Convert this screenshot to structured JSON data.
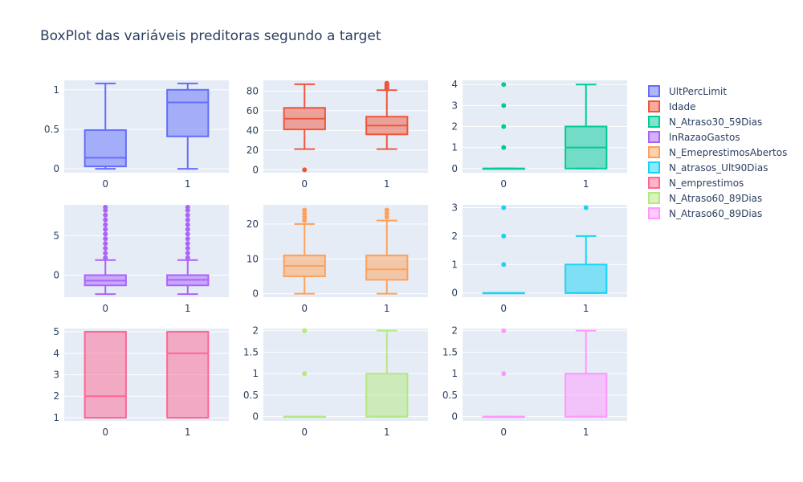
{
  "title": "BoxPlot das variáveis preditoras segundo a target",
  "legend_position": "right",
  "chart_data": [
    {
      "type": "box",
      "name": "UltPercLimit",
      "color": "#636efa",
      "categories": [
        "0",
        "1"
      ],
      "ylim": [
        -0.05,
        1.12
      ],
      "yticks": [
        0,
        0.5,
        1
      ],
      "ytick_labels": [
        "0",
        "0.5",
        "1"
      ],
      "grid": true,
      "boxes": [
        {
          "category": "0",
          "q1": 0.03,
          "median": 0.14,
          "q3": 0.49,
          "lower_fence": 0.0,
          "upper_fence": 1.08,
          "outliers": []
        },
        {
          "category": "1",
          "q1": 0.41,
          "median": 0.84,
          "q3": 1.0,
          "lower_fence": 0.0,
          "upper_fence": 1.08,
          "outliers": []
        }
      ]
    },
    {
      "type": "box",
      "name": "Idade",
      "color": "#ef553b",
      "categories": [
        "0",
        "1"
      ],
      "ylim": [
        -3,
        91
      ],
      "yticks": [
        0,
        20,
        40,
        60,
        80
      ],
      "ytick_labels": [
        "0",
        "20",
        "40",
        "60",
        "80"
      ],
      "grid": true,
      "boxes": [
        {
          "category": "0",
          "q1": 41,
          "median": 52,
          "q3": 63,
          "lower_fence": 21,
          "upper_fence": 87,
          "outliers": [
            0
          ]
        },
        {
          "category": "1",
          "q1": 36,
          "median": 45,
          "q3": 54,
          "lower_fence": 21,
          "upper_fence": 81,
          "outliers": [
            82,
            83,
            84,
            85,
            86,
            87,
            88
          ]
        }
      ]
    },
    {
      "type": "box",
      "name": "N_Atraso30_59Dias",
      "color": "#00cc96",
      "categories": [
        "0",
        "1"
      ],
      "ylim": [
        -0.2,
        4.2
      ],
      "yticks": [
        0,
        1,
        2,
        3,
        4
      ],
      "ytick_labels": [
        "0",
        "1",
        "2",
        "3",
        "4"
      ],
      "grid": true,
      "boxes": [
        {
          "category": "0",
          "q1": 0,
          "median": 0,
          "q3": 0,
          "lower_fence": 0,
          "upper_fence": 0,
          "outliers": [
            1,
            2,
            3,
            4
          ]
        },
        {
          "category": "1",
          "q1": 0,
          "median": 1,
          "q3": 2,
          "lower_fence": 0,
          "upper_fence": 4,
          "outliers": []
        }
      ]
    },
    {
      "type": "box",
      "name": "lnRazaoGastos",
      "color": "#ab63fa",
      "categories": [
        "0",
        "1"
      ],
      "ylim": [
        -2.8,
        8.9
      ],
      "yticks": [
        0,
        5
      ],
      "ytick_labels": [
        "0",
        "5"
      ],
      "grid": true,
      "boxes": [
        {
          "category": "0",
          "q1": -1.3,
          "median": -0.7,
          "q3": 0.0,
          "lower_fence": -2.4,
          "upper_fence": 1.9,
          "outliers": [
            2.2,
            2.8,
            3.4,
            4.0,
            4.6,
            5.2,
            5.8,
            6.4,
            7.0,
            7.6,
            8.2,
            8.6
          ]
        },
        {
          "category": "1",
          "q1": -1.3,
          "median": -0.6,
          "q3": 0.0,
          "lower_fence": -2.4,
          "upper_fence": 1.9,
          "outliers": [
            2.2,
            2.8,
            3.4,
            4.0,
            4.6,
            5.2,
            5.8,
            6.4,
            7.0,
            7.6,
            8.2,
            8.6
          ]
        }
      ]
    },
    {
      "type": "box",
      "name": "N_EmeprestimosAbertos",
      "color": "#ffa15a",
      "categories": [
        "0",
        "1"
      ],
      "ylim": [
        -1,
        25.5
      ],
      "yticks": [
        0,
        10,
        20
      ],
      "ytick_labels": [
        "0",
        "10",
        "20"
      ],
      "grid": true,
      "boxes": [
        {
          "category": "0",
          "q1": 5,
          "median": 8,
          "q3": 11,
          "lower_fence": 0,
          "upper_fence": 20,
          "outliers": [
            21,
            22,
            23,
            24
          ]
        },
        {
          "category": "1",
          "q1": 4,
          "median": 7,
          "q3": 11,
          "lower_fence": 0,
          "upper_fence": 21,
          "outliers": [
            22,
            23,
            24
          ]
        }
      ]
    },
    {
      "type": "box",
      "name": "N_atrasos_Ult90Dias",
      "color": "#19d3f3",
      "categories": [
        "0",
        "1"
      ],
      "ylim": [
        -0.15,
        3.1
      ],
      "yticks": [
        0,
        1,
        2,
        3
      ],
      "ytick_labels": [
        "0",
        "1",
        "2",
        "3"
      ],
      "grid": true,
      "boxes": [
        {
          "category": "0",
          "q1": 0,
          "median": 0,
          "q3": 0,
          "lower_fence": 0,
          "upper_fence": 0,
          "outliers": [
            1,
            2,
            3
          ]
        },
        {
          "category": "1",
          "q1": 0,
          "median": 0,
          "q3": 1,
          "lower_fence": 0,
          "upper_fence": 2,
          "outliers": [
            3
          ]
        }
      ]
    },
    {
      "type": "box",
      "name": "N_emprestimos",
      "color": "#ff6692",
      "categories": [
        "0",
        "1"
      ],
      "ylim": [
        0.85,
        5.15
      ],
      "yticks": [
        1,
        2,
        3,
        4,
        5
      ],
      "ytick_labels": [
        "1",
        "2",
        "3",
        "4",
        "5"
      ],
      "grid": true,
      "boxes": [
        {
          "category": "0",
          "q1": 1,
          "median": 2,
          "q3": 5,
          "lower_fence": 1,
          "upper_fence": 5,
          "outliers": []
        },
        {
          "category": "1",
          "q1": 1,
          "median": 4,
          "q3": 5,
          "lower_fence": 1,
          "upper_fence": 5,
          "outliers": []
        }
      ]
    },
    {
      "type": "box",
      "name": "N_Atraso60_89Dias",
      "color": "#b6e880",
      "categories": [
        "0",
        "1"
      ],
      "ylim": [
        -0.1,
        2.05
      ],
      "yticks": [
        0,
        0.5,
        1,
        1.5,
        2
      ],
      "ytick_labels": [
        "0",
        "0.5",
        "1",
        "1.5",
        "2"
      ],
      "grid": true,
      "boxes": [
        {
          "category": "0",
          "q1": 0,
          "median": 0,
          "q3": 0,
          "lower_fence": 0,
          "upper_fence": 0,
          "outliers": [
            1,
            2
          ]
        },
        {
          "category": "1",
          "q1": 0,
          "median": 0,
          "q3": 1,
          "lower_fence": 0,
          "upper_fence": 2,
          "outliers": []
        }
      ]
    },
    {
      "type": "box",
      "name": "N_Atraso60_89Dias",
      "color": "#ff97ff",
      "categories": [
        "0",
        "1"
      ],
      "ylim": [
        -0.1,
        2.05
      ],
      "yticks": [
        0,
        0.5,
        1,
        1.5,
        2
      ],
      "ytick_labels": [
        "0",
        "0.5",
        "1",
        "1.5",
        "2"
      ],
      "grid": true,
      "boxes": [
        {
          "category": "0",
          "q1": 0,
          "median": 0,
          "q3": 0,
          "lower_fence": 0,
          "upper_fence": 0,
          "outliers": [
            1,
            2
          ]
        },
        {
          "category": "1",
          "q1": 0,
          "median": 0,
          "q3": 1,
          "lower_fence": 0,
          "upper_fence": 2,
          "outliers": []
        }
      ]
    }
  ]
}
